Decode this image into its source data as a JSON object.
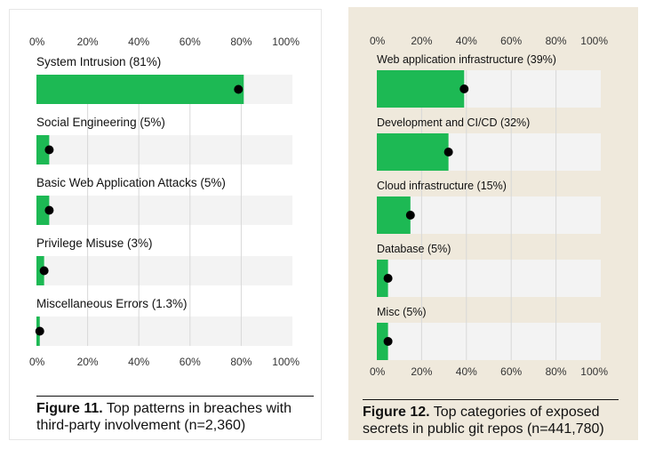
{
  "colors": {
    "bar": "#1db954",
    "track": "#f3f3f3",
    "grid": "#d8d8d8",
    "dot": "#000000",
    "panel2_bg": "#efe9dc"
  },
  "figure11": {
    "caption_bold": "Figure 11.",
    "caption_text": " Top patterns in breaches with third-party involvement (n=2,360)"
  },
  "figure12": {
    "caption_bold": "Figure 12.",
    "caption_text": " Top categories of exposed secrets in public git repos (n=441,780)"
  },
  "chart_data": [
    {
      "type": "bar",
      "orientation": "horizontal",
      "xlim": [
        0,
        100
      ],
      "ticks": [
        "0%",
        "20%",
        "40%",
        "60%",
        "80%",
        "100%"
      ],
      "categories": [
        "System Intrusion (81%)",
        "Social Engineering (5%)",
        "Basic Web Application Attacks (5%)",
        "Privilege Misuse (3%)",
        "Miscellaneous Errors (1.3%)"
      ],
      "values": [
        81,
        5,
        5,
        3,
        1.3
      ]
    },
    {
      "type": "bar",
      "orientation": "horizontal",
      "xlim": [
        0,
        100
      ],
      "ticks": [
        "0%",
        "20%",
        "40%",
        "60%",
        "80%",
        "100%"
      ],
      "categories": [
        "Web application infrastructure (39%)",
        "Development and CI/CD (32%)",
        "Cloud infrastructure (15%)",
        "Database (5%)",
        "Misc (5%)"
      ],
      "values": [
        39,
        32,
        15,
        5,
        5
      ]
    }
  ]
}
